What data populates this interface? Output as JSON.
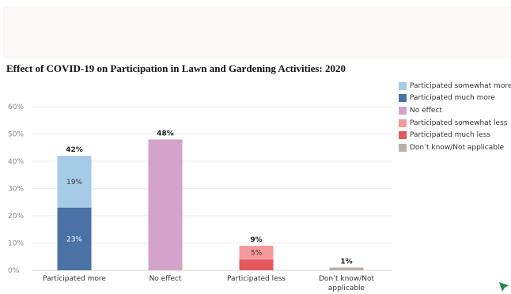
{
  "chart_data": {
    "type": "bar",
    "stacked": true,
    "title": "Effect of COVID-19 on Participation in Lawn and Gardening Activities: 2020",
    "xlabel": "",
    "ylabel": "",
    "ylim": [
      0,
      60
    ],
    "yticks": [
      0,
      10,
      20,
      30,
      40,
      50,
      60
    ],
    "ytick_labels": [
      "0%",
      "10%",
      "20%",
      "30%",
      "40%",
      "50%",
      "60%"
    ],
    "grid": true,
    "legend_position": "right",
    "categories": [
      {
        "label": "Participated more"
      },
      {
        "label": "No effect"
      },
      {
        "label": "Participated less"
      },
      {
        "label": "Don’t know/Not",
        "label2": "applicable"
      }
    ],
    "series": [
      {
        "name": "Participated much more",
        "color": "#4a72a4",
        "values": [
          23,
          0,
          0,
          0
        ],
        "labels": [
          "23%",
          "",
          "",
          ""
        ]
      },
      {
        "name": "Participated somewhat more",
        "color": "#a6cbe7",
        "values": [
          19,
          0,
          0,
          0
        ],
        "labels": [
          "19%",
          "",
          "",
          ""
        ]
      },
      {
        "name": "No effect",
        "color": "#d4a3c9",
        "values": [
          0,
          48,
          0,
          0
        ],
        "labels": [
          "",
          "",
          "",
          ""
        ]
      },
      {
        "name": "Participated much less",
        "color": "#e3595f",
        "values": [
          0,
          0,
          4,
          0
        ],
        "labels": [
          "",
          "",
          "",
          ""
        ]
      },
      {
        "name": "Participated somewhat less",
        "color": "#f5999b",
        "values": [
          0,
          0,
          5,
          0
        ],
        "labels": [
          "",
          "",
          "5%",
          ""
        ]
      },
      {
        "name": "Don’t know/Not applicable",
        "color": "#b9b1ab",
        "values": [
          0,
          0,
          0,
          1
        ],
        "labels": [
          "",
          "",
          "",
          ""
        ]
      }
    ],
    "totals": [
      "42%",
      "48%",
      "9%",
      "1%"
    ],
    "legend": [
      {
        "name": "Participated somewhat more",
        "color": "#a6cbe7"
      },
      {
        "name": "Participated much more",
        "color": "#4a72a4"
      },
      {
        "name": "No effect",
        "color": "#d4a3c9"
      },
      {
        "name": "Participated somewhat less",
        "color": "#f5999b"
      },
      {
        "name": "Participated much less",
        "color": "#e3595f"
      },
      {
        "name": "Don’t know/Not applicable",
        "color": "#b9b1ab"
      }
    ]
  }
}
